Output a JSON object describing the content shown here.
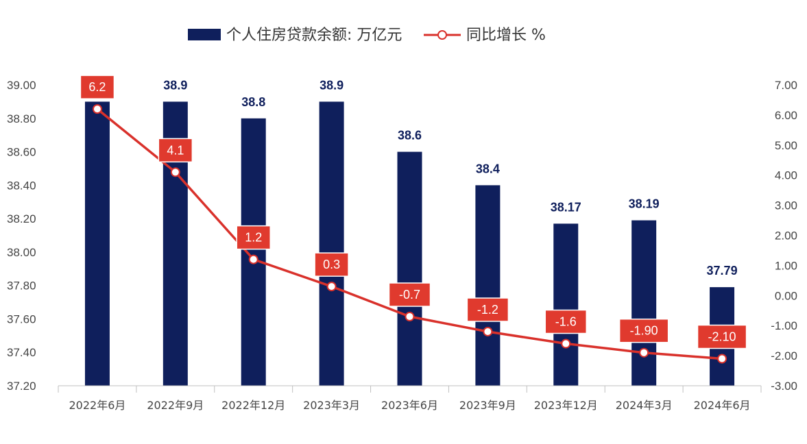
{
  "chart_data": {
    "type": "bar+line",
    "categories": [
      "2022年6月",
      "2022年9月",
      "2022年12月",
      "2023年3月",
      "2023年6月",
      "2023年9月",
      "2023年12月",
      "2024年3月",
      "2024年6月"
    ],
    "series": [
      {
        "name": "个人住房贷款余额: 万亿元",
        "type": "bar",
        "axis": "left",
        "color": "#0f1f5c",
        "values": [
          38.9,
          38.9,
          38.8,
          38.9,
          38.6,
          38.4,
          38.17,
          38.19,
          37.79
        ],
        "labels": [
          "",
          "38.9",
          "38.8",
          "38.9",
          "38.6",
          "38.4",
          "38.17",
          "38.19",
          "37.79"
        ]
      },
      {
        "name": "同比增长 %",
        "type": "line",
        "axis": "right",
        "color": "#d9312b",
        "values": [
          6.2,
          4.1,
          1.2,
          0.3,
          -0.7,
          -1.2,
          -1.6,
          -1.9,
          -2.1
        ],
        "labels": [
          "6.2",
          "4.1",
          "1.2",
          "0.3",
          "-0.7",
          "-1.2",
          "-1.6",
          "-1.90",
          "-2.10"
        ]
      }
    ],
    "y_left": {
      "min": 37.2,
      "max": 39.0,
      "ticks": [
        "39.00",
        "38.80",
        "38.60",
        "38.40",
        "38.20",
        "38.00",
        "37.80",
        "37.60",
        "37.40",
        "37.20"
      ]
    },
    "y_right": {
      "min": -3,
      "max": 7,
      "ticks": [
        "7.00",
        "6.00",
        "5.00",
        "4.00",
        "3.00",
        "2.00",
        "1.00",
        "0.00",
        "-1.00",
        "-2.00",
        "-3.00"
      ]
    },
    "legend_position": "top-center",
    "grid": false
  }
}
